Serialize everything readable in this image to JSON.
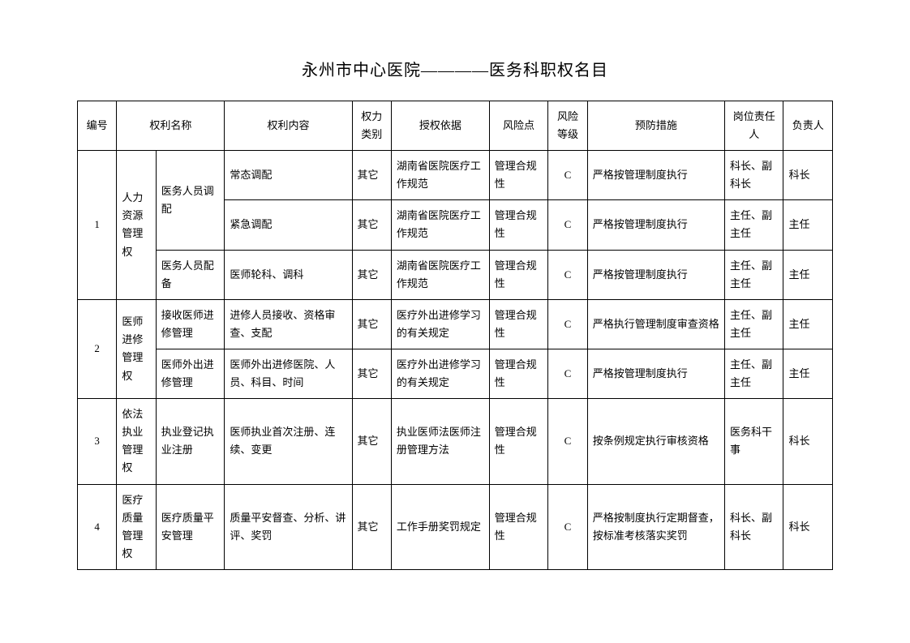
{
  "title": "永州市中心医院————医务科职权名目",
  "headers": {
    "num": "编号",
    "name": "权利名称",
    "content": "权利内容",
    "type": "权力类别",
    "basis": "授权依据",
    "risk": "风险点",
    "level": "风险等级",
    "measure": "预防措施",
    "post": "岗位责任人",
    "person": "负责人"
  },
  "rows": {
    "r1": {
      "num": "1",
      "name": "人力资源管理权",
      "sub1": "医务人员调配",
      "sub2": "医务人员配备",
      "a": {
        "content": "常态调配",
        "type": "其它",
        "basis": "湖南省医院医疗工作规范",
        "risk": "管理合规性",
        "level": "C",
        "measure": "严格按管理制度执行",
        "post": "科长、副科长",
        "person": "科长"
      },
      "b": {
        "content": "紧急调配",
        "type": "其它",
        "basis": "湖南省医院医疗工作规范",
        "risk": "管理合规性",
        "level": "C",
        "measure": "严格按管理制度执行",
        "post": "主任、副主任",
        "person": "主任"
      },
      "c": {
        "content": "医师轮科、调科",
        "type": "其它",
        "basis": "湖南省医院医疗工作规范",
        "risk": "管理合规性",
        "level": "C",
        "measure": "严格按管理制度执行",
        "post": "主任、副主任",
        "person": "主任"
      }
    },
    "r2": {
      "num": "2",
      "name": "医师进修管理权",
      "a": {
        "sub": "接收医师进修管理",
        "content": "进修人员接收、资格审查、支配",
        "type": "其它",
        "basis": "医疗外出进修学习的有关规定",
        "risk": "管理合规性",
        "level": "C",
        "measure": "严格执行管理制度审查资格",
        "post": "主任、副主任",
        "person": "主任"
      },
      "b": {
        "sub": "医师外出进修管理",
        "content": "医师外出进修医院、人员、科目、时间",
        "type": "其它",
        "basis": "医疗外出进修学习的有关规定",
        "risk": "管理合规性",
        "level": "C",
        "measure": "严格按管理制度执行",
        "post": "主任、副主任",
        "person": "主任"
      }
    },
    "r3": {
      "num": "3",
      "name": "依法执业管理权",
      "sub": "执业登记执业注册",
      "content": "医师执业首次注册、连续、变更",
      "type": "其它",
      "basis": "执业医师法医师注册管理方法",
      "risk": "管理合规性",
      "level": "C",
      "measure": "按条例规定执行审核资格",
      "post": "医务科干事",
      "person": "科长"
    },
    "r4": {
      "num": "4",
      "name": "医疗质量管理权",
      "sub": "医疗质量平安管理",
      "content": "质量平安督查、分析、讲评、奖罚",
      "type": "其它",
      "basis": "工作手册奖罚规定",
      "risk": "管理合规性",
      "level": "C",
      "measure": "严格按制度执行定期督查，按标准考核落实奖罚",
      "post": "科长、副科长",
      "person": "科长"
    }
  }
}
